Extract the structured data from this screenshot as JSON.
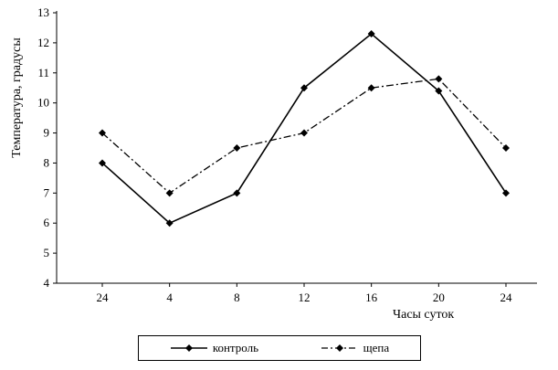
{
  "chart_data": {
    "type": "line",
    "categories": [
      "24",
      "4",
      "8",
      "12",
      "16",
      "20",
      "24"
    ],
    "series": [
      {
        "name": "контроль",
        "style": "solid",
        "marker": "diamond",
        "values": [
          8,
          6,
          7,
          10.5,
          12.3,
          10.4,
          7
        ]
      },
      {
        "name": "щепа",
        "style": "dashdot",
        "marker": "diamond",
        "values": [
          9,
          7,
          8.5,
          9,
          10.5,
          10.8,
          8.5
        ]
      }
    ],
    "title": "",
    "xlabel": "Часы суток",
    "ylabel": "Температура, градусы",
    "ylim": [
      4,
      13
    ],
    "yticks": [
      4,
      5,
      6,
      7,
      8,
      9,
      10,
      11,
      12,
      13
    ],
    "grid": false,
    "legend_position": "bottom",
    "line_color": "#000000"
  }
}
